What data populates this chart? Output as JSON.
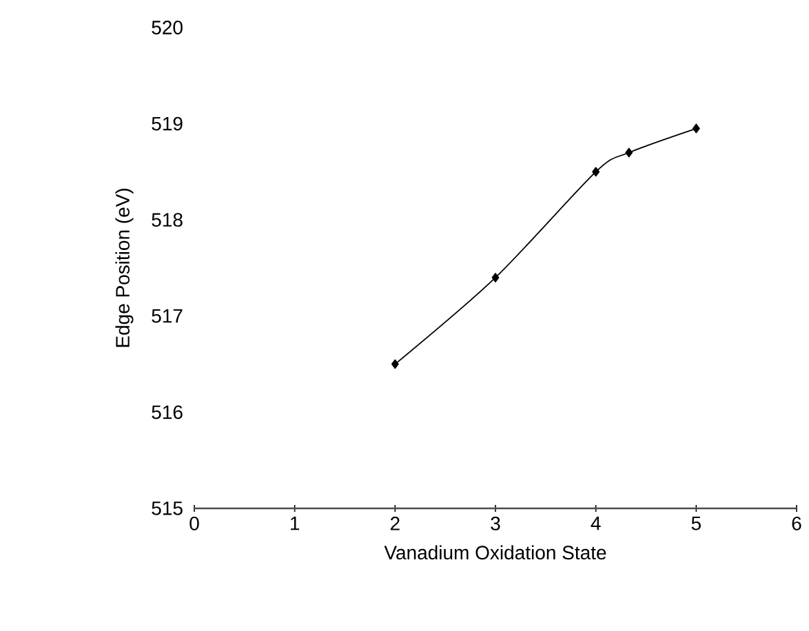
{
  "chart_data": {
    "type": "line",
    "xlabel": "Vanadium Oxidation State",
    "ylabel": "Edge Position (eV)",
    "x": [
      2,
      3,
      4,
      4.33,
      5
    ],
    "series": [
      {
        "color": "#000000",
        "values": [
          516.5,
          517.4,
          518.5,
          518.7,
          518.95
        ]
      }
    ],
    "xlim": [
      0,
      6
    ],
    "xticks": [
      0,
      1,
      2,
      3,
      4,
      5,
      6
    ],
    "ylim": [
      515,
      520
    ],
    "yticks": [
      515,
      516,
      517,
      518,
      519,
      520
    ],
    "marker": "diamond",
    "line_style": "solid"
  }
}
